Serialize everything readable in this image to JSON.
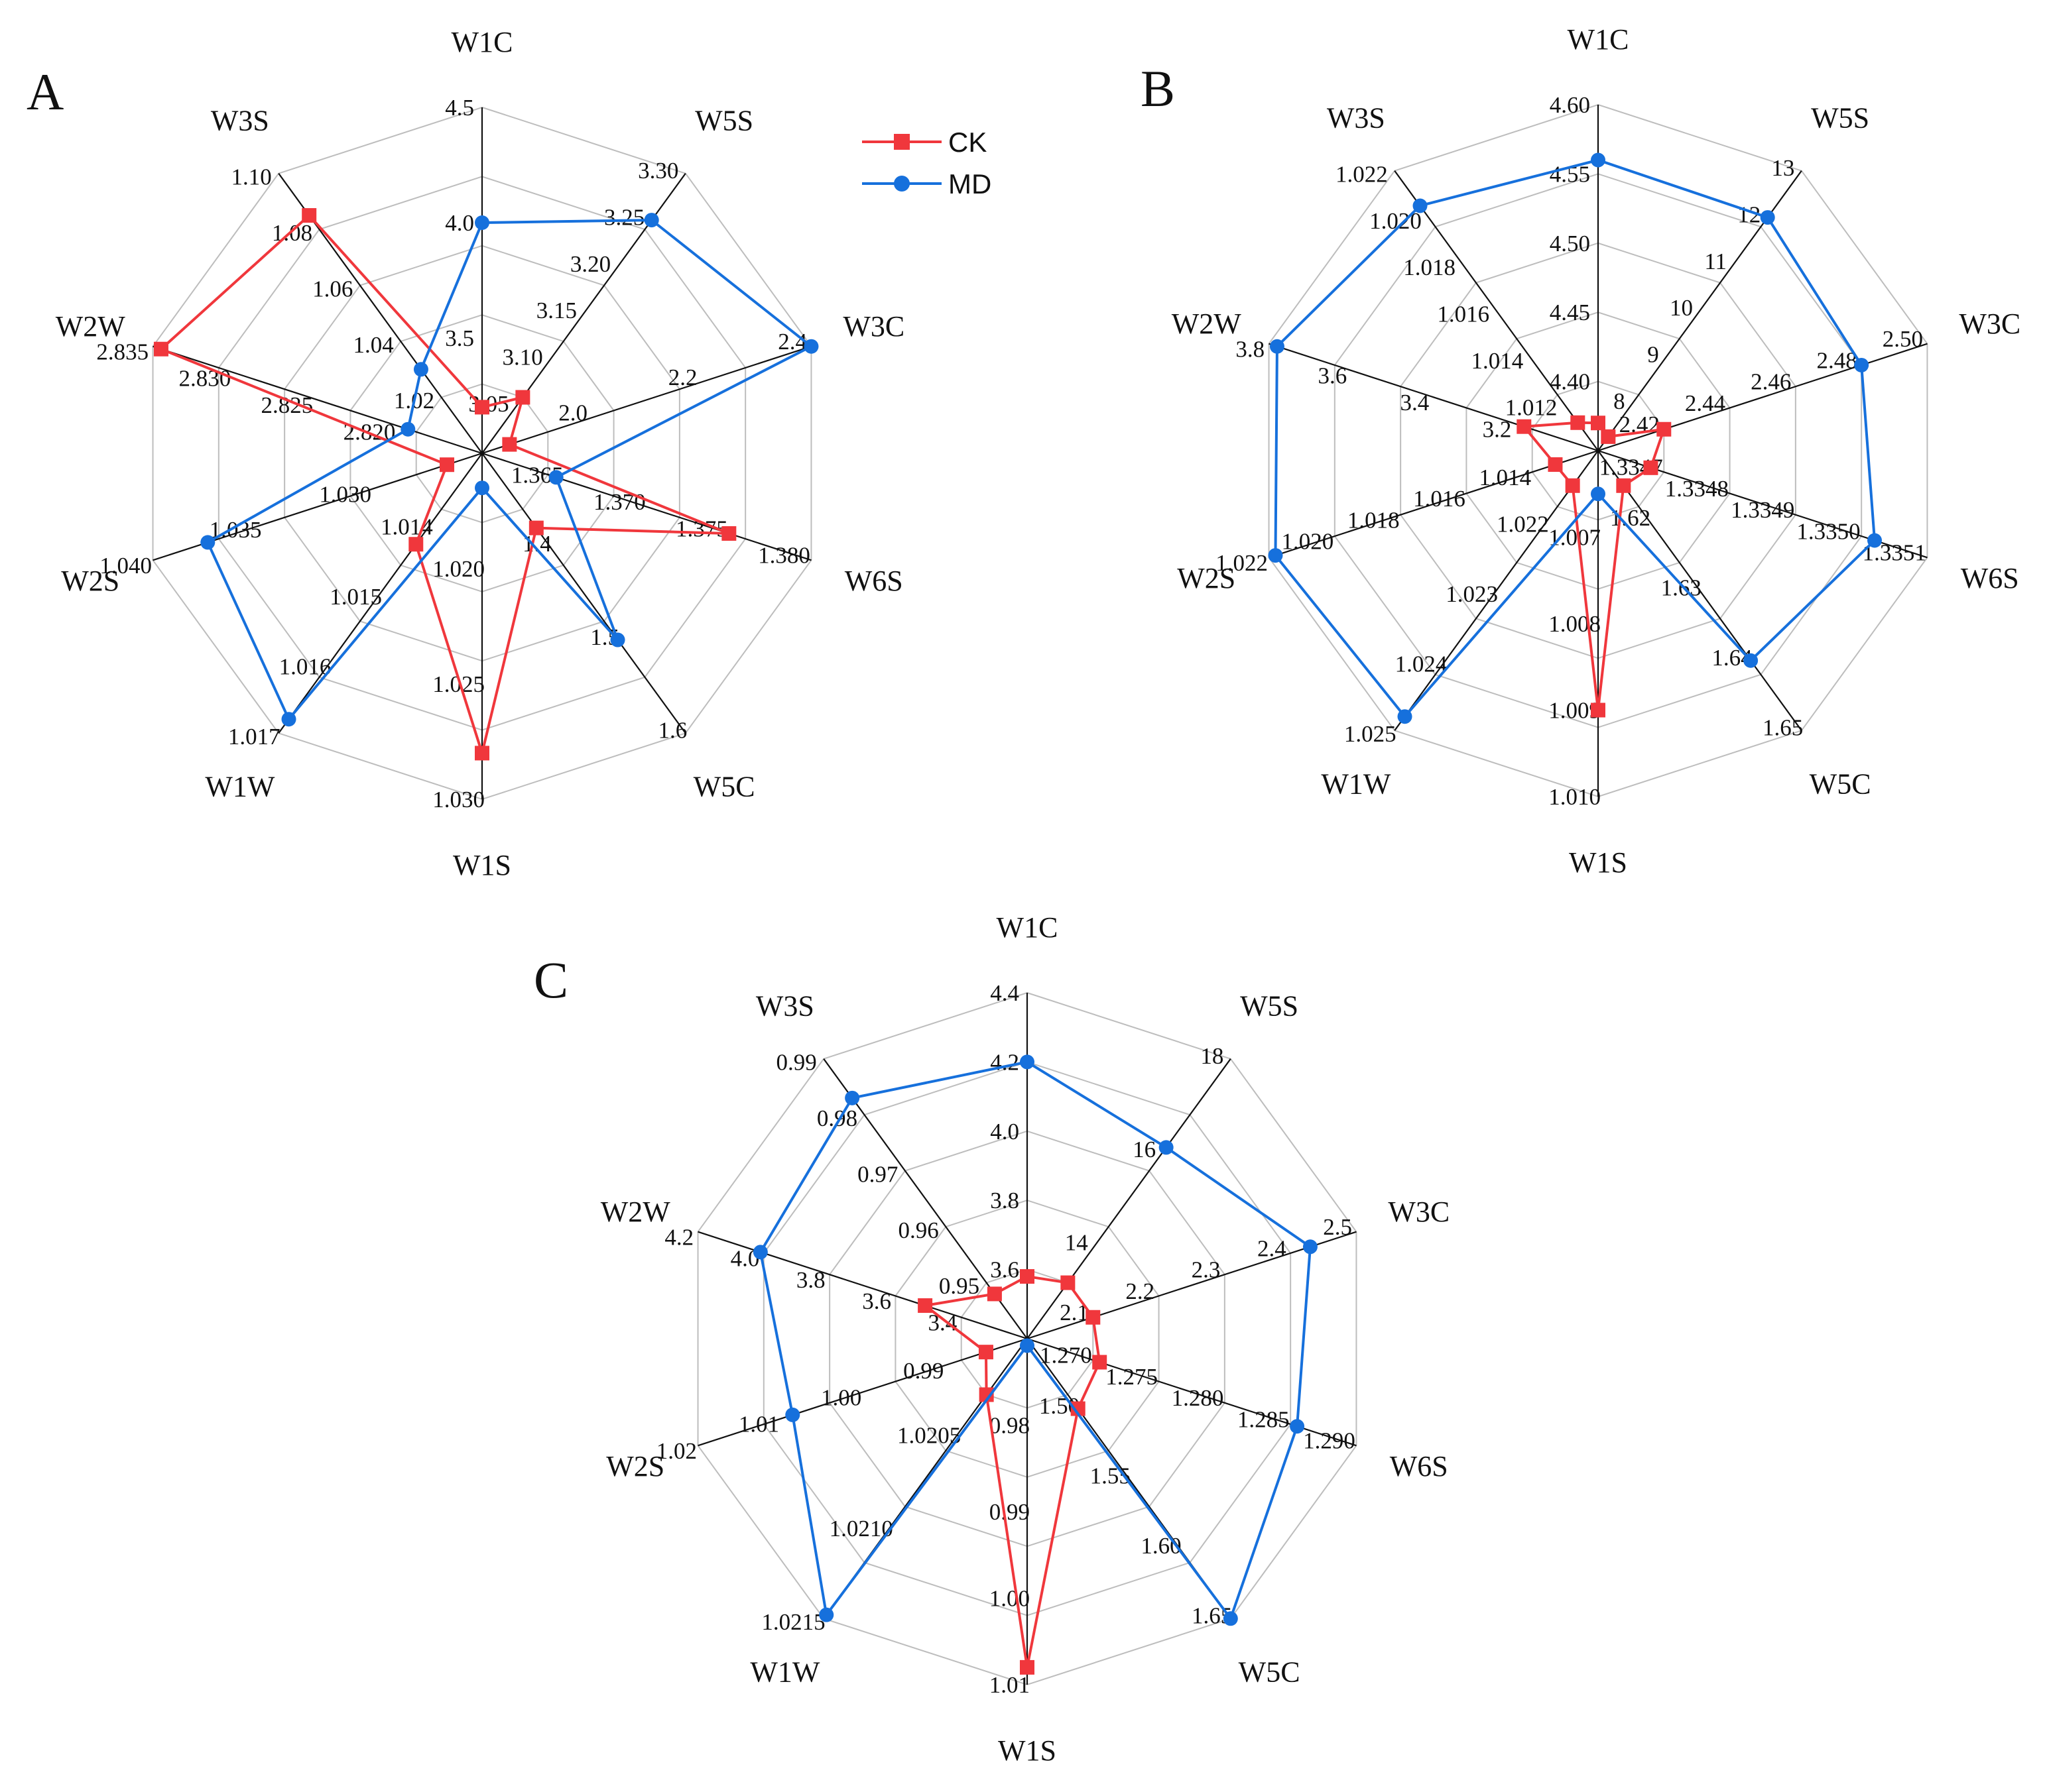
{
  "colors": {
    "CK": "#f0373c",
    "MD": "#1670dc"
  },
  "legend": [
    {
      "name": "CK",
      "marker": "square"
    },
    {
      "name": "MD",
      "marker": "circle"
    }
  ],
  "chart_data": [
    {
      "type": "radar",
      "panel": "A",
      "axes": [
        {
          "label": "W1C",
          "ticks": [
            "3.5",
            "4.0",
            "4.5"
          ],
          "range": [
            3.0,
            4.5
          ]
        },
        {
          "label": "W5S",
          "ticks": [
            "3.05",
            "3.10",
            "3.15",
            "3.20",
            "3.25",
            "3.30"
          ],
          "range": [
            3.0,
            3.3
          ]
        },
        {
          "label": "W3C",
          "ticks": [
            "2.0",
            "2.2",
            "2.4"
          ],
          "range": [
            1.8,
            2.4
          ]
        },
        {
          "label": "W6S",
          "ticks": [
            "1.365",
            "1.370",
            "1.375",
            "1.380"
          ],
          "range": [
            1.36,
            1.38
          ]
        },
        {
          "label": "W5C",
          "ticks": [
            "1.4",
            "1.5",
            "1.6"
          ],
          "range": [
            1.3,
            1.6
          ]
        },
        {
          "label": "W1S",
          "ticks": [
            "1.020",
            "1.025",
            "1.030"
          ],
          "range": [
            1.015,
            1.03
          ]
        },
        {
          "label": "W1W",
          "ticks": [
            "1.014",
            "1.015",
            "1.016",
            "1.017"
          ],
          "range": [
            1.013,
            1.017
          ]
        },
        {
          "label": "W2S",
          "ticks": [
            "1.030",
            "1.035",
            "1.040"
          ],
          "range": [
            1.025,
            1.04
          ]
        },
        {
          "label": "W2W",
          "ticks": [
            "2.820",
            "2.825",
            "2.830",
            "2.835"
          ],
          "range": [
            2.815,
            2.835
          ]
        },
        {
          "label": "W3S",
          "ticks": [
            "1.02",
            "1.04",
            "1.06",
            "1.08",
            "1.10"
          ],
          "range": [
            1.0,
            1.1
          ]
        }
      ],
      "series": [
        {
          "name": "CK",
          "values": [
            3.2,
            3.06,
            1.85,
            1.375,
            1.38,
            1.028,
            1.0143,
            1.0266,
            2.8345,
            1.085
          ]
        },
        {
          "name": "MD",
          "values": [
            4.0,
            3.25,
            2.4,
            1.3645,
            1.5,
            1.0165,
            1.0168,
            1.0375,
            2.8195,
            1.03
          ]
        }
      ]
    },
    {
      "type": "radar",
      "panel": "B",
      "axes": [
        {
          "label": "W1C",
          "ticks": [
            "4.40",
            "4.45",
            "4.50",
            "4.55",
            "4.60"
          ],
          "range": [
            4.35,
            4.6
          ]
        },
        {
          "label": "W5S",
          "ticks": [
            "8",
            "9",
            "10",
            "11",
            "12",
            "13"
          ],
          "range": [
            7,
            13
          ]
        },
        {
          "label": "W3C",
          "ticks": [
            "2.42",
            "2.44",
            "2.46",
            "2.48",
            "2.50"
          ],
          "range": [
            2.4,
            2.5
          ]
        },
        {
          "label": "W6S",
          "ticks": [
            "1.3347",
            "1.3348",
            "1.3349",
            "1.3350",
            "1.3351"
          ],
          "range": [
            1.3346,
            1.3351
          ]
        },
        {
          "label": "W5C",
          "ticks": [
            "1.62",
            "1.63",
            "1.64",
            "1.65"
          ],
          "range": [
            1.61,
            1.65
          ]
        },
        {
          "label": "W1S",
          "ticks": [
            "1.007",
            "1.008",
            "1.009",
            "1.010"
          ],
          "range": [
            1.006,
            1.01
          ]
        },
        {
          "label": "W1W",
          "ticks": [
            "1.022",
            "1.023",
            "1.024",
            "1.025"
          ],
          "range": [
            1.021,
            1.025
          ]
        },
        {
          "label": "W2S",
          "ticks": [
            "1.014",
            "1.016",
            "1.018",
            "1.020",
            "1.022"
          ],
          "range": [
            1.012,
            1.022
          ]
        },
        {
          "label": "W2W",
          "ticks": [
            "3.2",
            "3.4",
            "3.6",
            "3.8"
          ],
          "range": [
            3.0,
            3.8
          ]
        },
        {
          "label": "W3S",
          "ticks": [
            "1.012",
            "1.014",
            "1.016",
            "1.018",
            "1.020",
            "1.022"
          ],
          "range": [
            1.01,
            1.022
          ]
        }
      ],
      "series": [
        {
          "name": "CK",
          "values": [
            4.37,
            7.3,
            2.42,
            1.33468,
            1.615,
            1.009,
            1.0215,
            1.0133,
            3.18,
            1.0112
          ]
        },
        {
          "name": "MD",
          "values": [
            4.56,
            12.0,
            2.48,
            1.33502,
            1.64,
            1.0065,
            1.0248,
            1.0218,
            3.78,
            1.0205
          ]
        }
      ]
    },
    {
      "type": "radar",
      "panel": "C",
      "axes": [
        {
          "label": "W1C",
          "ticks": [
            "3.6",
            "3.8",
            "4.0",
            "4.2",
            "4.4"
          ],
          "range": [
            3.4,
            4.4
          ]
        },
        {
          "label": "W5S",
          "ticks": [
            "14",
            "16",
            "18"
          ],
          "range": [
            12,
            18
          ]
        },
        {
          "label": "W3C",
          "ticks": [
            "2.1",
            "2.2",
            "2.3",
            "2.4",
            "2.5"
          ],
          "range": [
            2.0,
            2.5
          ]
        },
        {
          "label": "W6S",
          "ticks": [
            "1.270",
            "1.275",
            "1.280",
            "1.285",
            "1.290"
          ],
          "range": [
            1.265,
            1.29
          ]
        },
        {
          "label": "W5C",
          "ticks": [
            "1.50",
            "1.55",
            "1.60",
            "1.65"
          ],
          "range": [
            1.45,
            1.65
          ]
        },
        {
          "label": "W1S",
          "ticks": [
            "0.98",
            "0.99",
            "1.00",
            "1.01"
          ],
          "range": [
            0.97,
            1.01
          ]
        },
        {
          "label": "W1W",
          "ticks": [
            "1.0205",
            "1.0210",
            "1.0215"
          ],
          "range": [
            1.02,
            1.0215
          ]
        },
        {
          "label": "W2S",
          "ticks": [
            "0.99",
            "1.00",
            "1.01",
            "1.02"
          ],
          "range": [
            0.98,
            1.02
          ]
        },
        {
          "label": "W2W",
          "ticks": [
            "3.4",
            "3.6",
            "3.8",
            "4.0",
            "4.2"
          ],
          "range": [
            3.2,
            4.2
          ]
        },
        {
          "label": "W3S",
          "ticks": [
            "0.95",
            "0.96",
            "0.97",
            "0.98",
            "0.99"
          ],
          "range": [
            0.94,
            0.99
          ]
        }
      ],
      "series": [
        {
          "name": "CK",
          "values": [
            3.58,
            13.2,
            2.1,
            1.2705,
            1.5,
            1.008,
            1.0203,
            0.985,
            3.51,
            0.948
          ]
        },
        {
          "name": "MD",
          "values": [
            4.2,
            16.1,
            2.43,
            1.2855,
            1.655,
            0.9705,
            1.02148,
            1.0085,
            4.01,
            0.983
          ]
        }
      ]
    }
  ]
}
